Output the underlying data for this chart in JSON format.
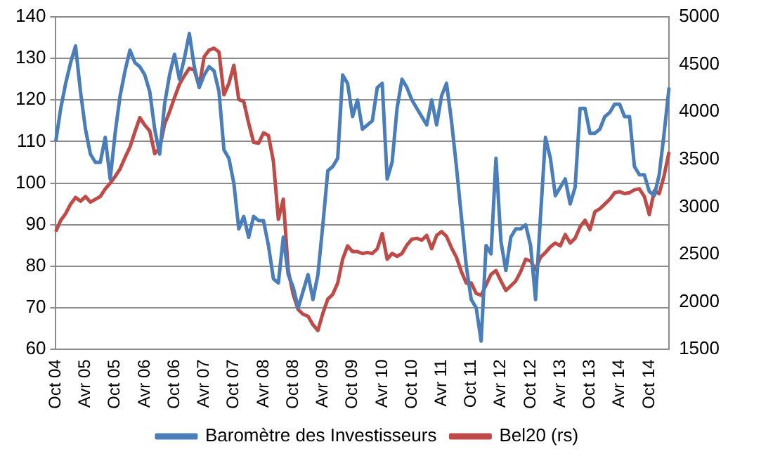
{
  "chart_data": {
    "type": "line",
    "categories": [
      "Oct 04",
      null,
      null,
      null,
      null,
      null,
      "Avr 05",
      null,
      null,
      null,
      null,
      null,
      "Oct 05",
      null,
      null,
      null,
      null,
      null,
      "Avr 06",
      null,
      null,
      null,
      null,
      null,
      "Oct 06",
      null,
      null,
      null,
      null,
      null,
      "Avr 07",
      null,
      null,
      null,
      null,
      null,
      "Oct 07",
      null,
      null,
      null,
      null,
      null,
      "Avr 08",
      null,
      null,
      null,
      null,
      null,
      "Oct 08",
      null,
      null,
      null,
      null,
      null,
      "Avr 09",
      null,
      null,
      null,
      null,
      null,
      "Oct 09",
      null,
      null,
      null,
      null,
      null,
      "Avr 10",
      null,
      null,
      null,
      null,
      null,
      "Oct 10",
      null,
      null,
      null,
      null,
      null,
      "Avr 11",
      null,
      null,
      null,
      null,
      null,
      "Oct 11",
      null,
      null,
      null,
      null,
      null,
      "Avr 12",
      null,
      null,
      null,
      null,
      null,
      "Oct 12",
      null,
      null,
      null,
      null,
      null,
      "Avr 13",
      null,
      null,
      null,
      null,
      null,
      "Oct 13",
      null,
      null,
      null,
      null,
      null,
      "Avr 14",
      null,
      null,
      null,
      null,
      null,
      "Oct 14",
      null,
      null,
      null,
      null
    ],
    "series": [
      {
        "name": "Baromètre des Investisseurs",
        "color": "#4a7ebb",
        "values": [
          110,
          118,
          124,
          129,
          133,
          122,
          113,
          107,
          105,
          105,
          111,
          101,
          112,
          121,
          127,
          132,
          129,
          128,
          126,
          122,
          113,
          107,
          119,
          126,
          131,
          125,
          130,
          136,
          128,
          123,
          126,
          128,
          127,
          122,
          108,
          106,
          100,
          89,
          92,
          87,
          92,
          91,
          91,
          85,
          77,
          76,
          87,
          78,
          75,
          70,
          74,
          78,
          72,
          78,
          90,
          103,
          104,
          106,
          126,
          124,
          116,
          120,
          113,
          114,
          115,
          123,
          124,
          101,
          105,
          118,
          125,
          123,
          120,
          118,
          116,
          114,
          120,
          114,
          121,
          124,
          115,
          104,
          92,
          80,
          72,
          70,
          62,
          85,
          83,
          106,
          86,
          79,
          87,
          89,
          89,
          90,
          85,
          72,
          92,
          111,
          106,
          97,
          99,
          101,
          95,
          99,
          118,
          118,
          112,
          112,
          113,
          116,
          117,
          119,
          119,
          116,
          116,
          104,
          102,
          102,
          98,
          97,
          102,
          112,
          123
        ]
      },
      {
        "name": "Bel20 (rs)",
        "color": "#be4b48",
        "axis": "y2",
        "values": [
          2740,
          2860,
          2930,
          3030,
          3100,
          3060,
          3110,
          3050,
          3080,
          3110,
          3190,
          3250,
          3320,
          3400,
          3520,
          3630,
          3790,
          3940,
          3860,
          3800,
          3560,
          3620,
          3870,
          4000,
          4150,
          4290,
          4380,
          4460,
          4440,
          4270,
          4580,
          4650,
          4670,
          4630,
          4180,
          4300,
          4490,
          4130,
          4110,
          3880,
          3680,
          3670,
          3780,
          3750,
          3480,
          2870,
          3080,
          2330,
          2080,
          1920,
          1870,
          1850,
          1760,
          1700,
          1880,
          2030,
          2080,
          2200,
          2450,
          2590,
          2530,
          2530,
          2510,
          2520,
          2510,
          2560,
          2720,
          2450,
          2510,
          2480,
          2510,
          2600,
          2660,
          2670,
          2650,
          2700,
          2560,
          2700,
          2740,
          2690,
          2570,
          2470,
          2320,
          2200,
          2200,
          2090,
          2070,
          2180,
          2290,
          2330,
          2220,
          2120,
          2170,
          2220,
          2320,
          2450,
          2430,
          2340,
          2470,
          2520,
          2580,
          2620,
          2590,
          2710,
          2620,
          2670,
          2790,
          2860,
          2760,
          2950,
          2980,
          3030,
          3080,
          3150,
          3160,
          3140,
          3150,
          3180,
          3190,
          3110,
          2920,
          3170,
          3140,
          3330,
          3580
        ]
      }
    ],
    "ylim": [
      60,
      140
    ],
    "yticks": [
      60,
      70,
      80,
      90,
      100,
      110,
      120,
      130,
      140
    ],
    "y2lim": [
      1500,
      5000
    ],
    "y2ticks": [
      1500,
      2000,
      2500,
      3000,
      3500,
      4000,
      4500,
      5000
    ],
    "grid": "y",
    "legend": "bottom",
    "marker": "none",
    "line_style": "solid"
  }
}
